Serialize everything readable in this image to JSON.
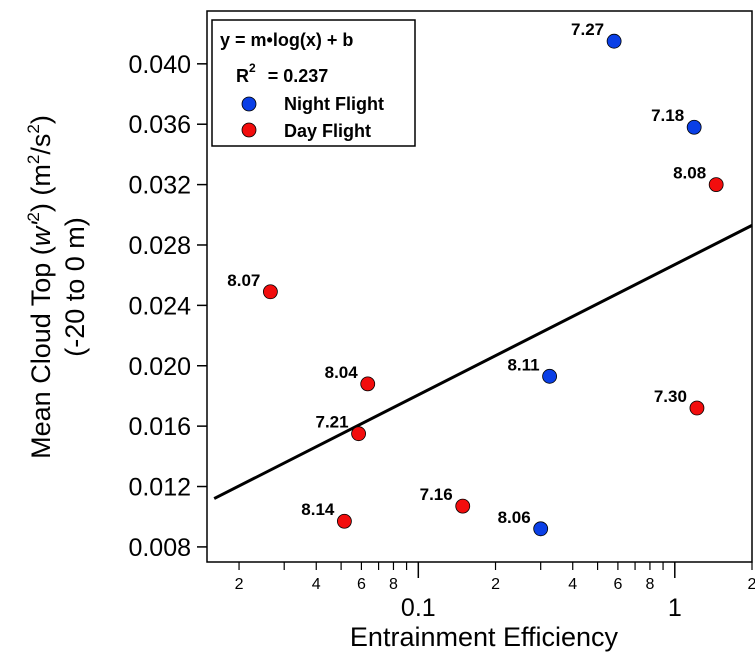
{
  "chart_data": {
    "type": "scatter",
    "xlabel": "Entrainment Efficiency",
    "ylabel_line1": "Mean Cloud Top (",
    "ylabel_var": "w'",
    "ylabel_sup1": "2",
    "ylabel_units_open": ") (m",
    "ylabel_sup2": "2",
    "ylabel_units_mid": "/s",
    "ylabel_sup3": "2",
    "ylabel_units_close": ")",
    "ylabel_line2": "(-20 to 0 m)",
    "x_scale": "log",
    "xlim": [
      0.015,
      2.0
    ],
    "ylim": [
      0.007,
      0.0435
    ],
    "y_ticks": [
      "0.008",
      "0.012",
      "0.016",
      "0.020",
      "0.024",
      "0.028",
      "0.032",
      "0.036",
      "0.040"
    ],
    "x_major_ticks": [
      {
        "value": 0.1,
        "label": "0.1"
      },
      {
        "value": 1,
        "label": "1"
      }
    ],
    "x_minor_ticks": [
      {
        "value": 0.02,
        "label": "2"
      },
      {
        "value": 0.03,
        "label": ""
      },
      {
        "value": 0.04,
        "label": "4"
      },
      {
        "value": 0.05,
        "label": ""
      },
      {
        "value": 0.06,
        "label": "6"
      },
      {
        "value": 0.07,
        "label": ""
      },
      {
        "value": 0.08,
        "label": "8"
      },
      {
        "value": 0.09,
        "label": ""
      },
      {
        "value": 0.2,
        "label": "2"
      },
      {
        "value": 0.3,
        "label": ""
      },
      {
        "value": 0.4,
        "label": "4"
      },
      {
        "value": 0.5,
        "label": ""
      },
      {
        "value": 0.6,
        "label": "6"
      },
      {
        "value": 0.7,
        "label": ""
      },
      {
        "value": 0.8,
        "label": "8"
      },
      {
        "value": 0.9,
        "label": ""
      },
      {
        "value": 2,
        "label": "2"
      }
    ],
    "series": [
      {
        "name": "Night Flight",
        "color": "#0a3fe6",
        "points": [
          {
            "x": 0.58,
            "y": 0.0415,
            "label": "7.27"
          },
          {
            "x": 1.19,
            "y": 0.0358,
            "label": "7.18"
          },
          {
            "x": 0.325,
            "y": 0.0193,
            "label": "8.11"
          },
          {
            "x": 0.3,
            "y": 0.0092,
            "label": "8.06"
          }
        ]
      },
      {
        "name": "Day Flight",
        "color": "#f20d0d",
        "points": [
          {
            "x": 1.45,
            "y": 0.032,
            "label": "8.08"
          },
          {
            "x": 0.0265,
            "y": 0.0249,
            "label": "8.07"
          },
          {
            "x": 0.0635,
            "y": 0.0188,
            "label": "8.04"
          },
          {
            "x": 0.0585,
            "y": 0.0155,
            "label": "7.21"
          },
          {
            "x": 1.22,
            "y": 0.0172,
            "label": "7.30"
          },
          {
            "x": 0.149,
            "y": 0.0107,
            "label": "7.16"
          },
          {
            "x": 0.0515,
            "y": 0.0097,
            "label": "8.14"
          }
        ]
      }
    ],
    "fit_line": {
      "x": [
        0.016,
        2.0
      ],
      "y": [
        0.0112,
        0.0293
      ]
    },
    "legend": {
      "placement": "top-left",
      "equation": "y = m•log(x) + b",
      "r2_prefix": "R",
      "r2_sup": "2",
      "r2_value": "= 0.237"
    },
    "grid": false
  }
}
